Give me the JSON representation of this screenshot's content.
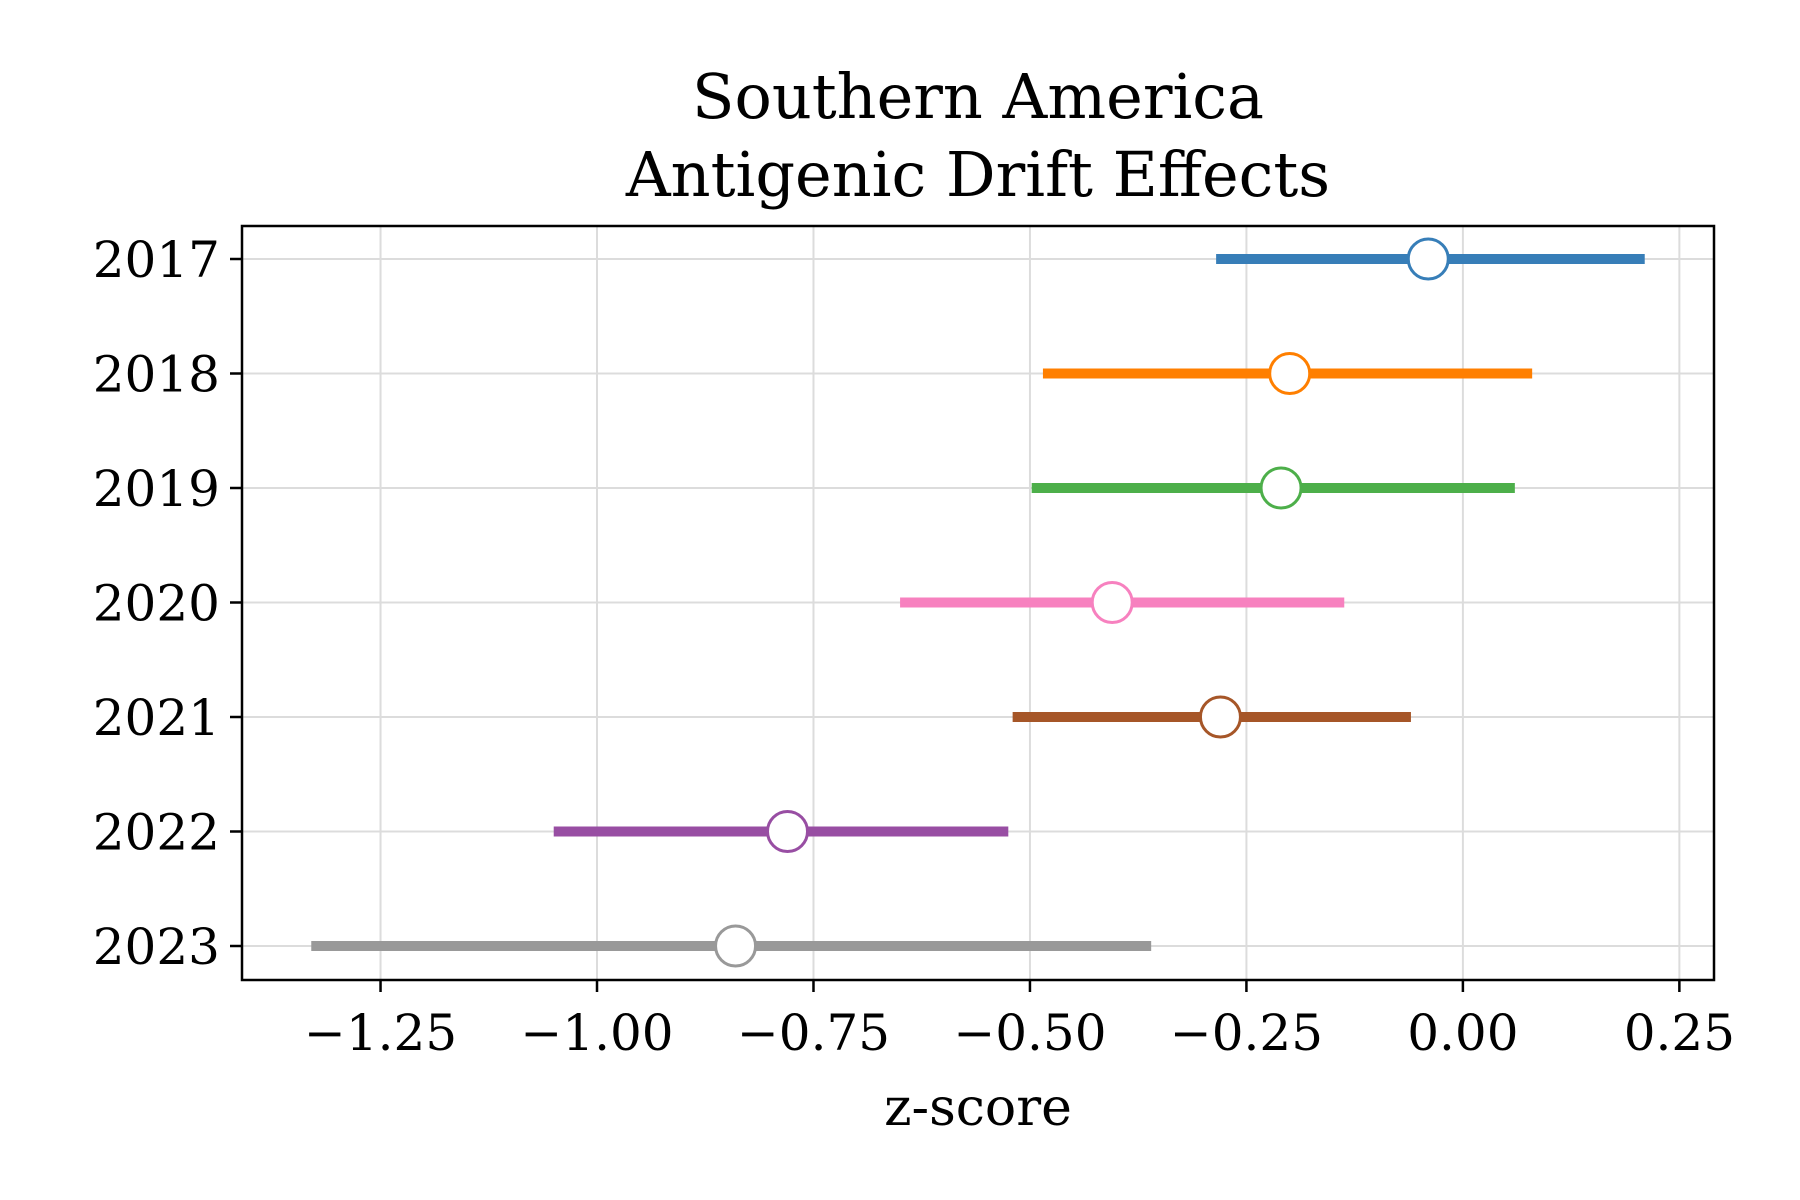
{
  "chart_data": {
    "type": "scatter",
    "title": "Southern America\nAntigenic Drift Effects",
    "xlabel": "z-score",
    "ylabel": "",
    "xlim": [
      -1.41,
      0.29
    ],
    "x_ticks": [
      -1.25,
      -1.0,
      -0.75,
      -0.5,
      -0.25,
      0.0,
      0.25
    ],
    "x_tick_labels": [
      "−1.25",
      "−1.00",
      "−0.75",
      "−0.50",
      "−0.25",
      "0.00",
      "0.25"
    ],
    "categories": [
      "2017",
      "2018",
      "2019",
      "2020",
      "2021",
      "2022",
      "2023"
    ],
    "grid": true,
    "legend": "none",
    "series": [
      {
        "category": "2017",
        "estimate": -0.04,
        "lower": -0.285,
        "upper": 0.21,
        "color": "#377eb8"
      },
      {
        "category": "2018",
        "estimate": -0.2,
        "lower": -0.485,
        "upper": 0.08,
        "color": "#ff7f00"
      },
      {
        "category": "2019",
        "estimate": -0.21,
        "lower": -0.498,
        "upper": 0.06,
        "color": "#4daf4a"
      },
      {
        "category": "2020",
        "estimate": -0.405,
        "lower": -0.65,
        "upper": -0.137,
        "color": "#f781bf"
      },
      {
        "category": "2021",
        "estimate": -0.28,
        "lower": -0.52,
        "upper": -0.06,
        "color": "#a65628"
      },
      {
        "category": "2022",
        "estimate": -0.78,
        "lower": -1.05,
        "upper": -0.525,
        "color": "#984ea3"
      },
      {
        "category": "2023",
        "estimate": -0.84,
        "lower": -1.33,
        "upper": -0.36,
        "color": "#999999"
      }
    ]
  }
}
